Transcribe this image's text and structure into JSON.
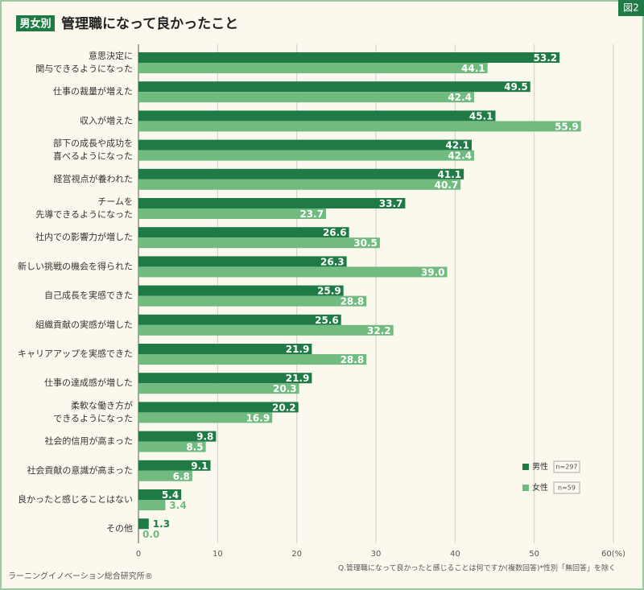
{
  "chart_data": {
    "type": "bar",
    "orientation": "horizontal",
    "badge": "男女別",
    "title": "管理職になって良かったこと",
    "figure_label": "図2",
    "categories": [
      [
        "意思決定に",
        "関与できるようになった"
      ],
      [
        "仕事の裁量が増えた"
      ],
      [
        "収入が増えた"
      ],
      [
        "部下の成長や成功を",
        "喜べるようになった"
      ],
      [
        "経営視点が養われた"
      ],
      [
        "チームを",
        "先導できるようになった"
      ],
      [
        "社内での影響力が増した"
      ],
      [
        "新しい挑戦の機会を得られた"
      ],
      [
        "自己成長を実感できた"
      ],
      [
        "組織貢献の実感が増した"
      ],
      [
        "キャリアアップを実感できた"
      ],
      [
        "仕事の達成感が増した"
      ],
      [
        "柔軟な働き方が",
        "できるようになった"
      ],
      [
        "社会的信用が高まった"
      ],
      [
        "社会貢献の意識が高まった"
      ],
      [
        "良かったと感じることはない"
      ],
      [
        "その他"
      ]
    ],
    "series": [
      {
        "name": "男性",
        "sample": "n=297",
        "color": "#1f7a45",
        "values": [
          53.2,
          49.5,
          45.1,
          42.1,
          41.1,
          33.7,
          26.6,
          26.3,
          25.9,
          25.6,
          21.9,
          21.9,
          20.2,
          9.8,
          9.1,
          5.4,
          1.3
        ]
      },
      {
        "name": "女性",
        "sample": "n=59",
        "color": "#72bb80",
        "values": [
          44.1,
          42.4,
          55.9,
          42.4,
          40.7,
          23.7,
          30.5,
          39.0,
          28.8,
          32.2,
          28.8,
          20.3,
          16.9,
          8.5,
          6.8,
          3.4,
          0
        ],
        "value_labels": [
          "44.1",
          "42.4",
          "55.9",
          "42.4",
          "40.7",
          "23.7",
          "30.5",
          "39.0",
          "28.8",
          "32.2",
          "28.8",
          "20.3",
          "16.9",
          "8.5",
          "6.8",
          "3.4",
          "0.0"
        ]
      }
    ],
    "xlim": [
      0,
      60
    ],
    "xticks": [
      0,
      10,
      20,
      30,
      40,
      50,
      {
        "value": 60,
        "label": "60(%)"
      }
    ],
    "grid": true,
    "legend": "lower right",
    "note": "Q.管理職になって良かったと感じることは何ですか(複数回答)*性別「無回答」を除く",
    "source": "ラーニングイノベーション総合研究所®"
  }
}
